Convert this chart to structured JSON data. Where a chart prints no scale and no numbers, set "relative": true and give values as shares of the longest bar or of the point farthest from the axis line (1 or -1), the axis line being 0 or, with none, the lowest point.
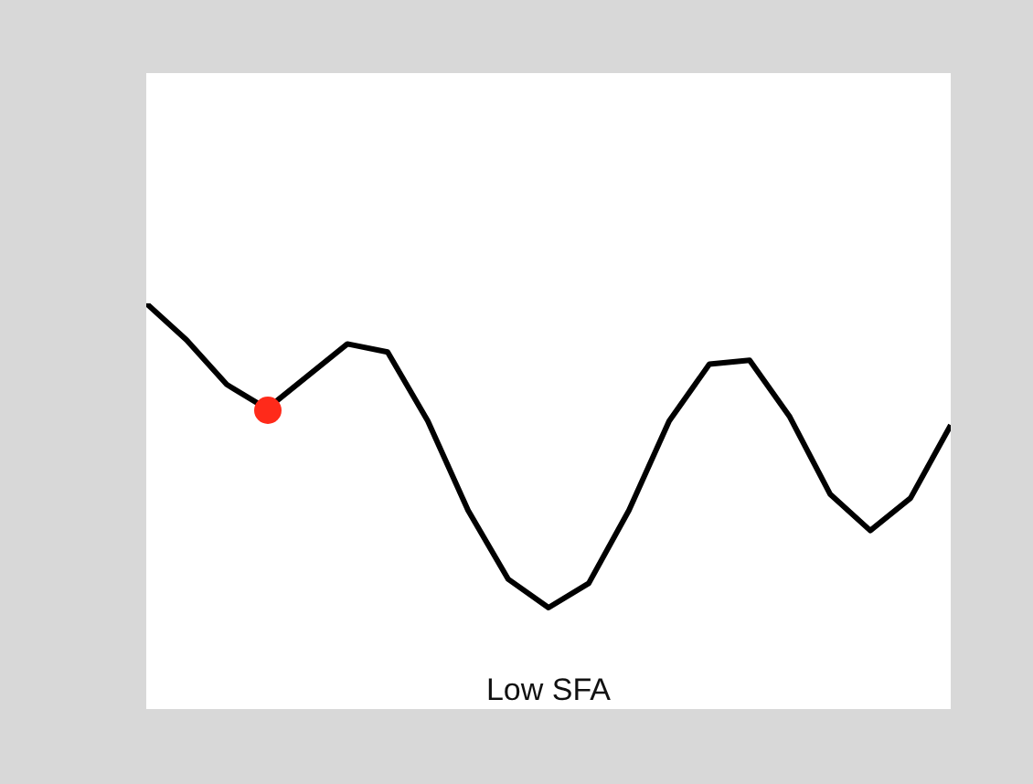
{
  "chart_data": {
    "type": "line",
    "xlabel": "Low SFA",
    "relative": true,
    "categories": [
      null,
      null,
      null,
      null,
      null,
      null,
      null,
      null,
      null,
      null,
      null,
      null,
      null,
      null,
      null,
      null,
      null,
      null,
      null,
      null,
      null
    ],
    "marker": "none",
    "series": [
      {
        "color": "#000000",
        "values": [
          1.0,
          0.91,
          0.8,
          0.74,
          0.82,
          0.9,
          0.88,
          0.71,
          0.49,
          0.32,
          0.25,
          0.31,
          0.49,
          0.71,
          0.85,
          0.86,
          0.72,
          0.53,
          0.44,
          0.52,
          0.7
        ]
      }
    ]
  }
}
